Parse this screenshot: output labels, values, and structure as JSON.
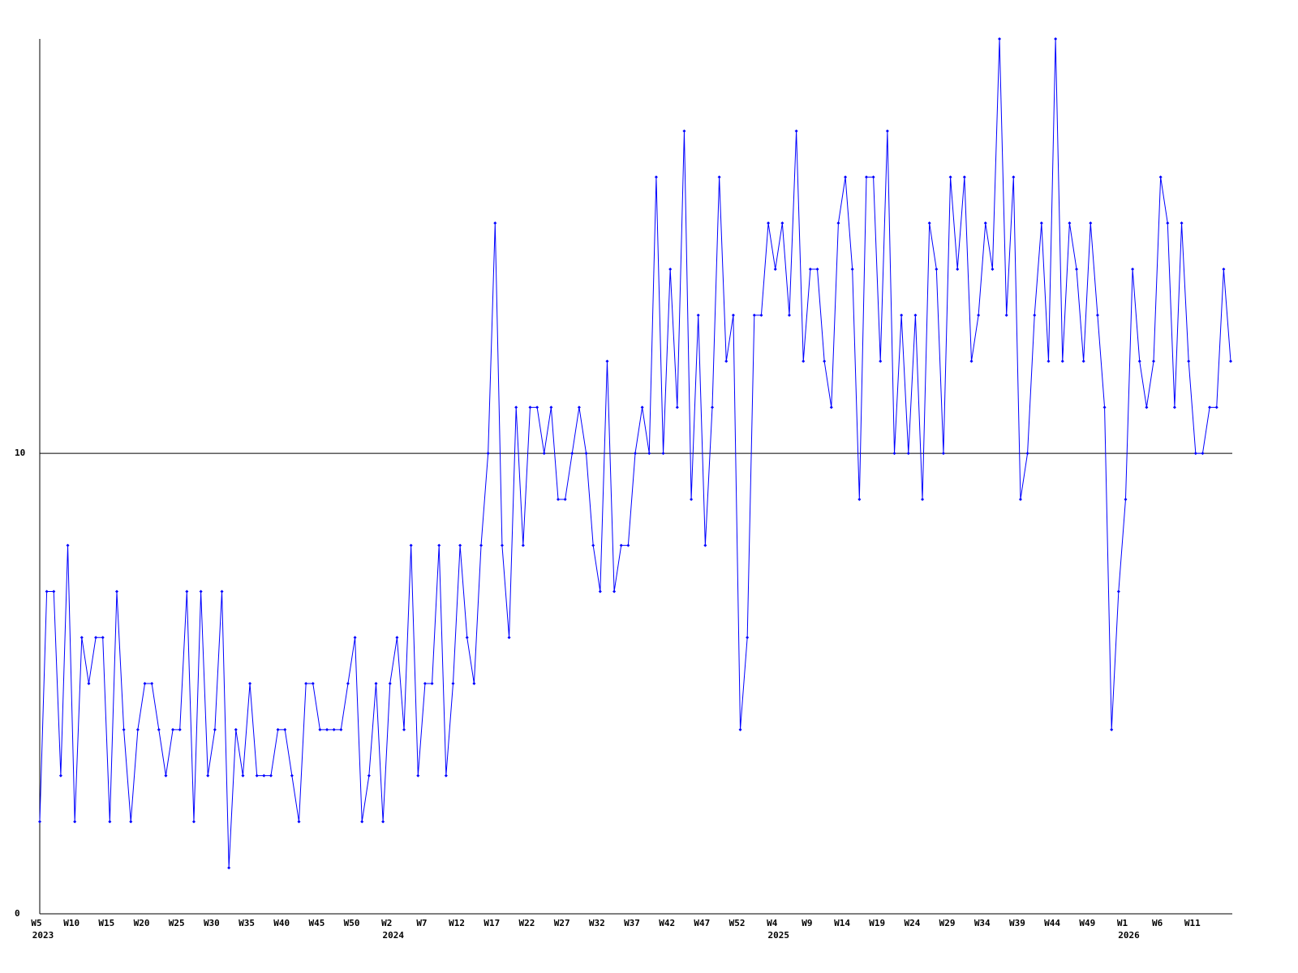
{
  "chart_data": {
    "type": "line",
    "color": "#0000ff",
    "grid": true,
    "ylim": [
      0,
      19
    ],
    "yticks": [
      0,
      10
    ],
    "categories": [
      "W5",
      null,
      null,
      null,
      null,
      "W10",
      null,
      null,
      null,
      null,
      "W15",
      null,
      null,
      null,
      null,
      "W20",
      null,
      null,
      null,
      null,
      "W25",
      null,
      null,
      null,
      null,
      "W30",
      null,
      null,
      null,
      null,
      "W35",
      null,
      null,
      null,
      null,
      "W40",
      null,
      null,
      null,
      null,
      "W45",
      null,
      null,
      null,
      null,
      "W50",
      null,
      null,
      null,
      null,
      "W2",
      null,
      null,
      null,
      null,
      "W7",
      null,
      null,
      null,
      null,
      "W12",
      null,
      null,
      null,
      null,
      "W17",
      null,
      null,
      null,
      null,
      "W22",
      null,
      null,
      null,
      null,
      "W27",
      null,
      null,
      null,
      null,
      "W32",
      null,
      null,
      null,
      null,
      "W37",
      null,
      null,
      null,
      null,
      "W42",
      null,
      null,
      null,
      null,
      "W47",
      null,
      null,
      null,
      null,
      "W52",
      null,
      null,
      null,
      null,
      "W4",
      null,
      null,
      null,
      null,
      "W9",
      null,
      null,
      null,
      null,
      "W14",
      null,
      null,
      null,
      null,
      "W19",
      null,
      null,
      null,
      null,
      "W24",
      null,
      null,
      null,
      null,
      "W29",
      null,
      null,
      null,
      null,
      "W34",
      null,
      null,
      null,
      null,
      "W39",
      null,
      null,
      null,
      null,
      "W44",
      null,
      null,
      null,
      null,
      "W49",
      null,
      null,
      null,
      null,
      "W1",
      null,
      null,
      null,
      null,
      "W6",
      null,
      null,
      null,
      null,
      "W11",
      null,
      null,
      null,
      null,
      null
    ],
    "years": [
      "2023",
      null,
      null,
      null,
      null,
      null,
      null,
      null,
      null,
      null,
      null,
      null,
      null,
      null,
      null,
      null,
      null,
      null,
      null,
      null,
      null,
      null,
      null,
      null,
      null,
      null,
      null,
      null,
      null,
      null,
      null,
      null,
      null,
      null,
      null,
      null,
      null,
      null,
      null,
      null,
      null,
      null,
      null,
      null,
      null,
      null,
      null,
      null,
      null,
      null,
      "2024",
      null,
      null,
      null,
      null,
      null,
      null,
      null,
      null,
      null,
      null,
      null,
      null,
      null,
      null,
      null,
      null,
      null,
      null,
      null,
      null,
      null,
      null,
      null,
      null,
      null,
      null,
      null,
      null,
      null,
      null,
      null,
      null,
      null,
      null,
      null,
      null,
      null,
      null,
      null,
      null,
      null,
      null,
      null,
      null,
      null,
      null,
      null,
      null,
      null,
      null,
      null,
      null,
      null,
      null,
      "2025",
      null,
      null,
      null,
      null,
      null,
      null,
      null,
      null,
      null,
      null,
      null,
      null,
      null,
      null,
      null,
      null,
      null,
      null,
      null,
      null,
      null,
      null,
      null,
      null,
      null,
      null,
      null,
      null,
      null,
      null,
      null,
      null,
      null,
      null,
      null,
      null,
      null,
      null,
      null,
      null,
      null,
      null,
      null,
      null,
      null,
      null,
      null,
      null,
      null,
      "2026",
      null,
      null,
      null,
      null,
      null,
      null,
      null,
      null,
      null,
      null,
      null,
      null,
      null,
      null,
      null
    ],
    "values": [
      2,
      7,
      7,
      3,
      8,
      2,
      6,
      5,
      6,
      6,
      2,
      7,
      4,
      2,
      4,
      5,
      5,
      4,
      3,
      4,
      4,
      7,
      2,
      7,
      3,
      4,
      7,
      1,
      4,
      3,
      5,
      3,
      3,
      3,
      4,
      4,
      3,
      2,
      5,
      5,
      4,
      4,
      4,
      4,
      5,
      6,
      2,
      3,
      5,
      2,
      5,
      6,
      4,
      8,
      3,
      5,
      5,
      8,
      3,
      5,
      8,
      6,
      5,
      8,
      10,
      15,
      8,
      6,
      11,
      8,
      11,
      11,
      10,
      11,
      9,
      9,
      10,
      11,
      10,
      8,
      7,
      12,
      7,
      8,
      8,
      10,
      11,
      10,
      16,
      10,
      14,
      11,
      17,
      9,
      13,
      8,
      11,
      16,
      12,
      13,
      4,
      6,
      13,
      13,
      15,
      14,
      15,
      13,
      17,
      12,
      14,
      14,
      12,
      11,
      15,
      16,
      14,
      9,
      16,
      16,
      12,
      17,
      10,
      13,
      10,
      13,
      9,
      15,
      14,
      10,
      16,
      14,
      16,
      12,
      13,
      15,
      14,
      19,
      13,
      16,
      9,
      10,
      13,
      15,
      12,
      19,
      12,
      15,
      14,
      12,
      15,
      13,
      11,
      4,
      7,
      9,
      14,
      12,
      11,
      12,
      16,
      15,
      11,
      15,
      12,
      10,
      10,
      11,
      11,
      14,
      12
    ]
  }
}
